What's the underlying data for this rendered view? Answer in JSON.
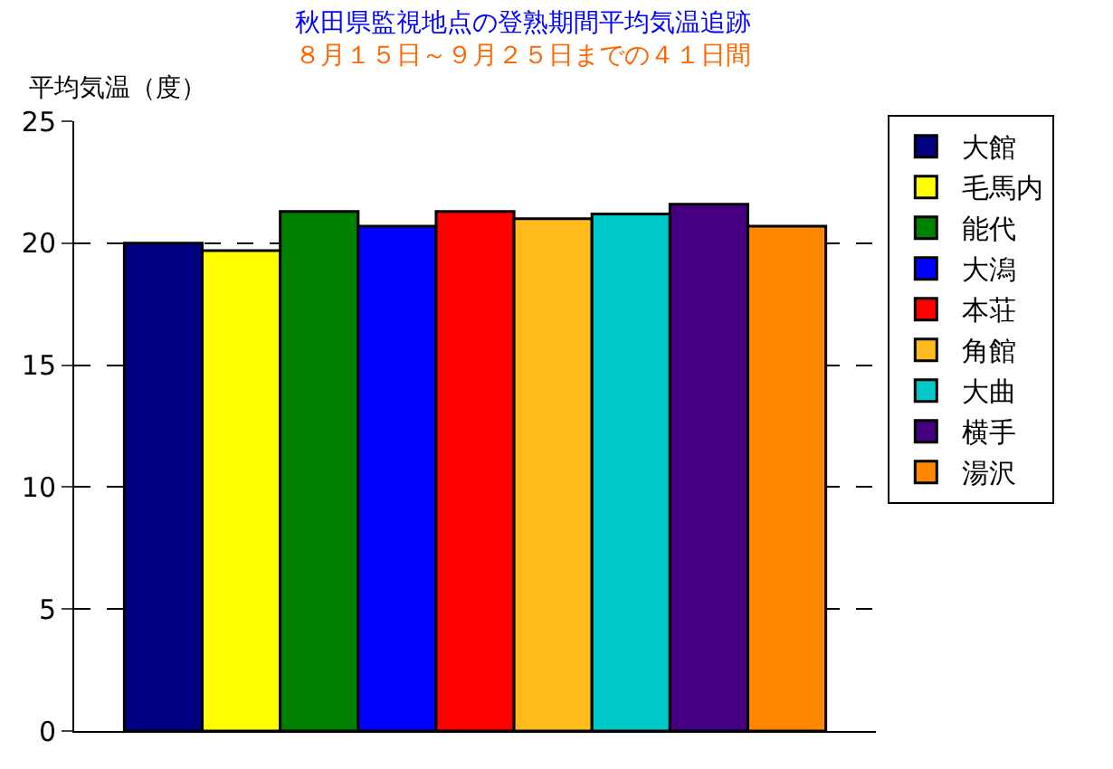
{
  "chart_data": {
    "type": "bar",
    "title": "秋田県監視地点の登熟期間平均気温追跡",
    "subtitle": "８月１５日～９月２５日までの４１日間",
    "ylabel": "平均気温（度）",
    "categories": [
      null
    ],
    "series": [
      {
        "name": "大館",
        "color": "#000080",
        "values": [
          20.0
        ]
      },
      {
        "name": "毛馬内",
        "color": "#ffff00",
        "values": [
          19.7
        ]
      },
      {
        "name": "能代",
        "color": "#008000",
        "values": [
          21.3
        ]
      },
      {
        "name": "大潟",
        "color": "#0000ff",
        "values": [
          20.7
        ]
      },
      {
        "name": "本荘",
        "color": "#ff0000",
        "values": [
          21.3
        ]
      },
      {
        "name": "角館",
        "color": "#ffbb1c",
        "values": [
          21.0
        ]
      },
      {
        "name": "大曲",
        "color": "#00c8c8",
        "values": [
          21.2
        ]
      },
      {
        "name": "横手",
        "color": "#440080",
        "values": [
          21.6
        ]
      },
      {
        "name": "湯沢",
        "color": "#ff8800",
        "values": [
          20.7
        ]
      }
    ],
    "ylim": [
      0,
      25
    ],
    "yticks": [
      0,
      5,
      10,
      15,
      20,
      25
    ],
    "grid": "y",
    "legend": "right"
  }
}
